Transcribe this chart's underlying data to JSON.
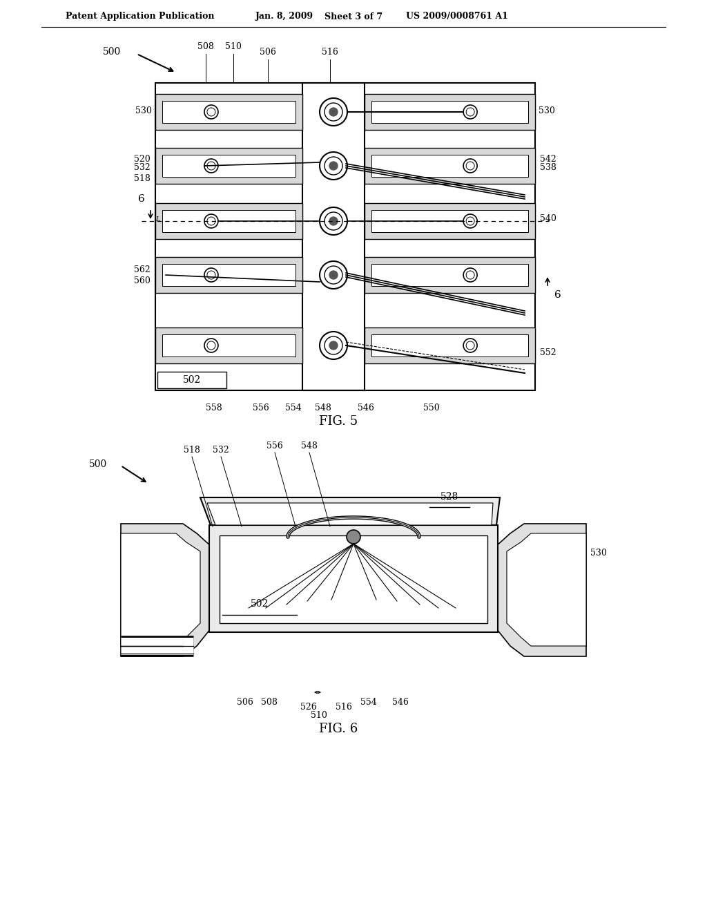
{
  "bg_color": "#ffffff",
  "line_color": "#000000",
  "header_left": "Patent Application Publication",
  "header_mid1": "Jan. 8, 2009",
  "header_mid2": "Sheet 3 of 7",
  "header_right": "US 2009/0008761 A1",
  "fig5_label": "FIG. 5",
  "fig6_label": "FIG. 6"
}
